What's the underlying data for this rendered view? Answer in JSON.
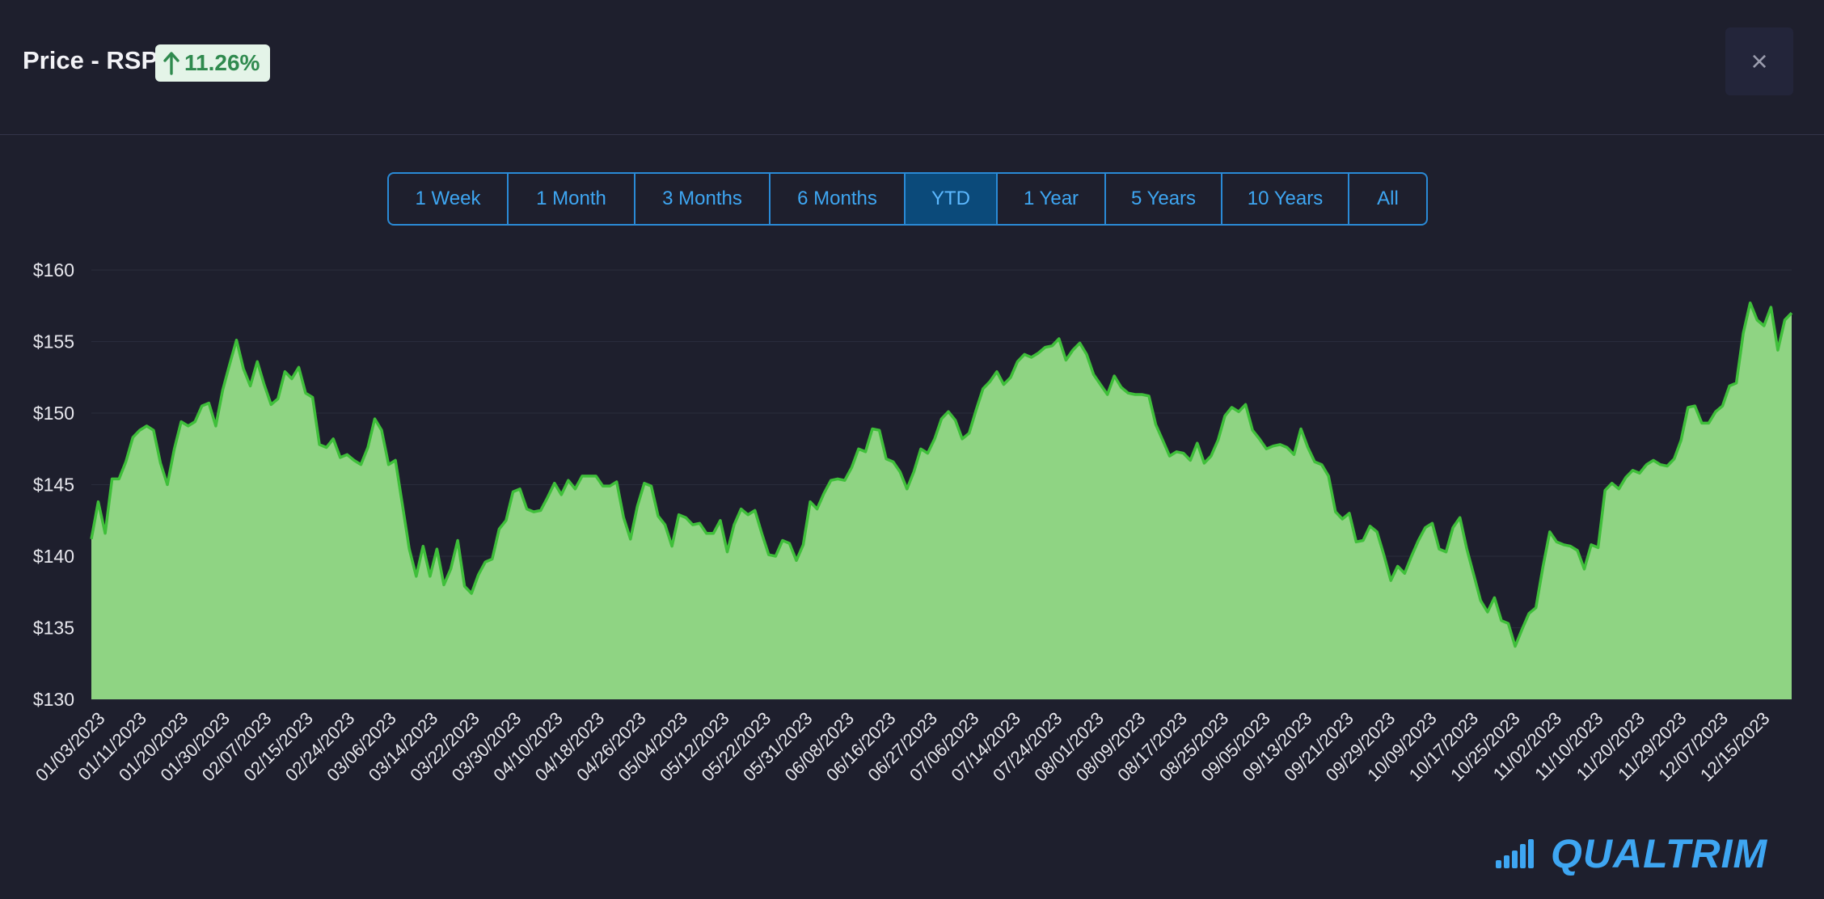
{
  "header": {
    "title": "Price - RSP",
    "change_badge": "11.26%",
    "change_direction_icon": "arrow-up-icon",
    "close_label": "×"
  },
  "range_selector": {
    "options": [
      "1 Week",
      "1 Month",
      "3 Months",
      "6 Months",
      "YTD",
      "1 Year",
      "5 Years",
      "10 Years",
      "All"
    ],
    "selected": "YTD"
  },
  "brand": {
    "name": "QUALTRIM",
    "logo_icon": "bar-chart-icon"
  },
  "colors": {
    "background": "#1e1f2d",
    "area_fill": "#8fd483",
    "line": "#3fbf3a",
    "accent": "#3ea6f2",
    "badge_bg": "#e4f4e8",
    "badge_text": "#2f8a4e"
  },
  "chart_data": {
    "type": "area",
    "ylim": [
      130,
      160
    ],
    "yticks": [
      130,
      135,
      140,
      145,
      150,
      155,
      160
    ],
    "ytick_labels": [
      "$130",
      "$135",
      "$140",
      "$145",
      "$150",
      "$155",
      "$160"
    ],
    "x_tick_labels": [
      "01/03/2023",
      "01/11/2023",
      "01/20/2023",
      "01/30/2023",
      "02/07/2023",
      "02/15/2023",
      "02/24/2023",
      "03/06/2023",
      "03/14/2023",
      "03/22/2023",
      "03/30/2023",
      "04/10/2023",
      "04/18/2023",
      "04/26/2023",
      "05/04/2023",
      "05/12/2023",
      "05/22/2023",
      "05/31/2023",
      "06/08/2023",
      "06/16/2023",
      "06/27/2023",
      "07/06/2023",
      "07/14/2023",
      "07/24/2023",
      "08/01/2023",
      "08/09/2023",
      "08/17/2023",
      "08/25/2023",
      "09/05/2023",
      "09/13/2023",
      "09/21/2023",
      "09/29/2023",
      "10/09/2023",
      "10/17/2023",
      "10/25/2023",
      "11/02/2023",
      "11/10/2023",
      "11/20/2023",
      "11/29/2023",
      "12/07/2023",
      "12/15/2023"
    ],
    "series": [
      {
        "values": [
          141.2,
          143.8,
          141.6,
          145.4,
          145.4,
          146.6,
          148.3,
          148.8,
          149.1,
          148.8,
          146.5,
          145.0,
          147.5,
          149.4,
          149.1,
          149.4,
          150.5,
          150.7,
          149.1,
          151.6,
          153.4,
          155.1,
          153.1,
          151.9,
          153.6,
          152.0,
          150.6,
          151.0,
          152.9,
          152.4,
          153.2,
          151.4,
          151.1,
          147.8,
          147.6,
          148.2,
          146.9,
          147.1,
          146.7,
          146.4,
          147.6,
          149.6,
          148.8,
          146.4,
          146.7,
          143.6,
          140.5,
          138.6,
          140.7,
          138.6,
          140.5,
          138.0,
          139.1,
          141.1,
          137.9,
          137.4,
          138.7,
          139.6,
          139.8,
          141.9,
          142.5,
          144.5,
          144.7,
          143.3,
          143.1,
          143.2,
          144.1,
          145.1,
          144.3,
          145.3,
          144.7,
          145.6,
          145.6,
          145.6,
          144.9,
          144.9,
          145.2,
          142.7,
          141.2,
          143.5,
          145.1,
          144.9,
          142.8,
          142.2,
          140.7,
          142.9,
          142.7,
          142.2,
          142.3,
          141.6,
          141.6,
          142.5,
          140.3,
          142.2,
          143.3,
          142.9,
          143.2,
          141.6,
          140.1,
          140.0,
          141.1,
          140.9,
          139.7,
          140.8,
          143.8,
          143.3,
          144.4,
          145.3,
          145.4,
          145.3,
          146.2,
          147.5,
          147.3,
          148.9,
          148.8,
          146.8,
          146.6,
          145.9,
          144.7,
          145.9,
          147.5,
          147.2,
          148.2,
          149.6,
          150.1,
          149.5,
          148.2,
          148.6,
          150.2,
          151.7,
          152.2,
          152.9,
          152.0,
          152.5,
          153.6,
          154.1,
          153.9,
          154.2,
          154.6,
          154.7,
          155.2,
          153.7,
          154.4,
          154.9,
          154.1,
          152.7,
          152.0,
          151.3,
          152.6,
          151.8,
          151.4,
          151.3,
          151.3,
          151.2,
          149.2,
          148.1,
          147.0,
          147.3,
          147.2,
          146.7,
          147.9,
          146.5,
          147.0,
          148.1,
          149.8,
          150.4,
          150.1,
          150.6,
          148.8,
          148.2,
          147.5,
          147.7,
          147.8,
          147.6,
          147.1,
          148.9,
          147.6,
          146.6,
          146.4,
          145.6,
          143.1,
          142.6,
          143.0,
          141.0,
          141.1,
          142.1,
          141.7,
          140.1,
          138.3,
          139.3,
          138.8,
          140.0,
          141.1,
          142.0,
          142.3,
          140.5,
          140.3,
          142.0,
          142.7,
          140.5,
          138.7,
          136.9,
          136.1,
          137.1,
          135.5,
          135.3,
          133.7,
          134.9,
          136.0,
          136.4,
          139.2,
          141.7,
          141.0,
          140.8,
          140.7,
          140.4,
          139.1,
          140.8,
          140.6,
          144.6,
          145.1,
          144.7,
          145.5,
          146.0,
          145.8,
          146.4,
          146.7,
          146.4,
          146.3,
          146.8,
          148.1,
          150.4,
          150.5,
          149.3,
          149.3,
          150.1,
          150.5,
          151.9,
          152.1,
          155.6,
          157.7,
          156.5,
          156.1,
          157.4,
          154.4,
          156.5,
          157.0
        ]
      }
    ],
    "grid": true
  }
}
